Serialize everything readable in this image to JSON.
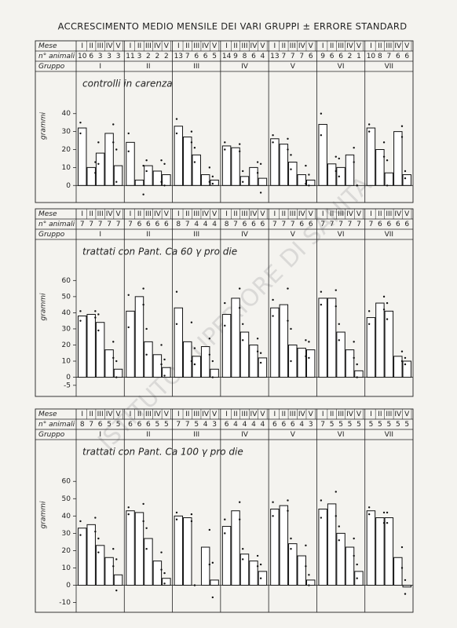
{
  "title": "ACCRESCIMENTO MEDIO MENSILE DEI VARI GRUPPI ± ERRORE STANDARD",
  "watermark": "ISTITUTO SUPERIORE DI SANITÀ",
  "chart_data": [
    {
      "type": "bar",
      "title": "controlli in carenza",
      "y_label": "grammi",
      "row_labels": [
        "Mese",
        "n° animali",
        "Gruppo"
      ],
      "months": [
        "I",
        "II",
        "III",
        "IV",
        "V"
      ],
      "ylim": [
        -6,
        46
      ],
      "yticks": [
        0,
        10,
        20,
        30,
        40
      ],
      "groups": [
        {
          "name": "I",
          "counts": [
            10,
            6,
            3,
            3,
            3
          ],
          "values": [
            32,
            10,
            18,
            29,
            11
          ],
          "errors": [
            3,
            3,
            6,
            5,
            9
          ]
        },
        {
          "name": "II",
          "counts": [
            11,
            3,
            2,
            2,
            2
          ],
          "values": [
            24,
            3,
            11,
            8,
            6
          ],
          "errors": [
            5,
            8,
            3,
            6,
            6
          ]
        },
        {
          "name": "III",
          "counts": [
            13,
            7,
            6,
            6,
            5
          ],
          "values": [
            33,
            27,
            17,
            6,
            3
          ],
          "errors": [
            4,
            3,
            4,
            4,
            2
          ]
        },
        {
          "name": "IV",
          "counts": [
            14,
            9,
            8,
            6,
            4
          ],
          "values": [
            22,
            21,
            5,
            10,
            4
          ],
          "errors": [
            2,
            2,
            3,
            3,
            8
          ]
        },
        {
          "name": "V",
          "counts": [
            13,
            7,
            7,
            7,
            6
          ],
          "values": [
            26,
            23,
            13,
            6,
            3
          ],
          "errors": [
            2,
            3,
            4,
            5,
            3
          ]
        },
        {
          "name": "VI",
          "counts": [
            9,
            6,
            6,
            2,
            1
          ],
          "values": [
            34,
            12,
            10,
            17,
            0
          ],
          "errors": [
            6,
            4,
            5,
            4,
            0
          ]
        },
        {
          "name": "VII",
          "counts": [
            10,
            8,
            7,
            6,
            6
          ],
          "values": [
            32,
            20,
            7,
            30,
            6
          ],
          "errors": [
            2,
            4,
            7,
            3,
            2
          ]
        }
      ]
    },
    {
      "type": "bar",
      "title": "trattati con Pant. Ca 60 γ pro die",
      "y_label": "grammi",
      "row_labels": [
        "Mese",
        "n° animali",
        "Gruppo"
      ],
      "months": [
        "I",
        "II",
        "III",
        "IV",
        "V"
      ],
      "ylim": [
        -8,
        66
      ],
      "yticks": [
        -5,
        0,
        10,
        20,
        30,
        40,
        50,
        60
      ],
      "groups": [
        {
          "name": "I",
          "counts": [
            7,
            7,
            7,
            7,
            7
          ],
          "values": [
            38,
            39,
            34,
            17,
            5
          ],
          "errors": [
            3,
            2,
            5,
            5,
            5
          ]
        },
        {
          "name": "II",
          "counts": [
            7,
            6,
            6,
            6,
            6
          ],
          "values": [
            41,
            50,
            22,
            14,
            6
          ],
          "errors": [
            10,
            5,
            8,
            6,
            5
          ]
        },
        {
          "name": "III",
          "counts": [
            8,
            7,
            4,
            4,
            4
          ],
          "values": [
            43,
            22,
            13,
            19,
            5
          ],
          "errors": [
            10,
            12,
            5,
            5,
            5
          ]
        },
        {
          "name": "IV",
          "counts": [
            8,
            7,
            6,
            6,
            6
          ],
          "values": [
            39,
            49,
            28,
            20,
            12
          ],
          "errors": [
            7,
            6,
            5,
            4,
            3
          ]
        },
        {
          "name": "V",
          "counts": [
            7,
            7,
            7,
            6,
            6
          ],
          "values": [
            43,
            45,
            20,
            18,
            17
          ],
          "errors": [
            5,
            10,
            10,
            5,
            5
          ]
        },
        {
          "name": "VI",
          "counts": [
            7,
            7,
            7,
            7,
            7
          ],
          "values": [
            49,
            49,
            28,
            17,
            4
          ],
          "errors": [
            4,
            5,
            5,
            5,
            4
          ]
        },
        {
          "name": "VII",
          "counts": [
            7,
            6,
            6,
            6,
            6
          ],
          "values": [
            37,
            46,
            41,
            13,
            10
          ],
          "errors": [
            4,
            4,
            5,
            3,
            2
          ]
        }
      ]
    },
    {
      "type": "bar",
      "title": "trattati con Pant. Ca 100 γ pro die",
      "y_label": "grammi",
      "row_labels": [
        "Mese",
        "n° animali",
        "Gruppo"
      ],
      "months": [
        "I",
        "II",
        "III",
        "IV",
        "V"
      ],
      "ylim": [
        -12,
        66
      ],
      "yticks": [
        -10,
        0,
        10,
        20,
        30,
        40,
        50,
        60
      ],
      "groups": [
        {
          "name": "I",
          "counts": [
            8,
            7,
            6,
            5,
            5
          ],
          "values": [
            33,
            35,
            23,
            16,
            6
          ],
          "errors": [
            4,
            4,
            4,
            5,
            9
          ]
        },
        {
          "name": "II",
          "counts": [
            6,
            6,
            6,
            5,
            5
          ],
          "values": [
            43,
            42,
            27,
            14,
            4
          ],
          "errors": [
            2,
            5,
            6,
            5,
            3
          ]
        },
        {
          "name": "III",
          "counts": [
            7,
            7,
            5,
            4,
            3
          ],
          "values": [
            40,
            39,
            0,
            22,
            3
          ],
          "errors": [
            2,
            2,
            0,
            10,
            10
          ]
        },
        {
          "name": "IV",
          "counts": [
            6,
            4,
            4,
            4,
            4
          ],
          "values": [
            34,
            43,
            18,
            14,
            8
          ],
          "errors": [
            4,
            5,
            3,
            3,
            4
          ]
        },
        {
          "name": "V",
          "counts": [
            6,
            6,
            6,
            4,
            3
          ],
          "values": [
            44,
            46,
            24,
            17,
            3
          ],
          "errors": [
            4,
            3,
            3,
            6,
            3
          ]
        },
        {
          "name": "VI",
          "counts": [
            7,
            5,
            5,
            5,
            5
          ],
          "values": [
            44,
            47,
            30,
            22,
            8
          ],
          "errors": [
            5,
            7,
            4,
            5,
            4
          ]
        },
        {
          "name": "VII",
          "counts": [
            5,
            5,
            5,
            5,
            5
          ],
          "values": [
            43,
            39,
            39,
            16,
            -1
          ],
          "errors": [
            2,
            3,
            3,
            6,
            4
          ]
        }
      ]
    }
  ]
}
